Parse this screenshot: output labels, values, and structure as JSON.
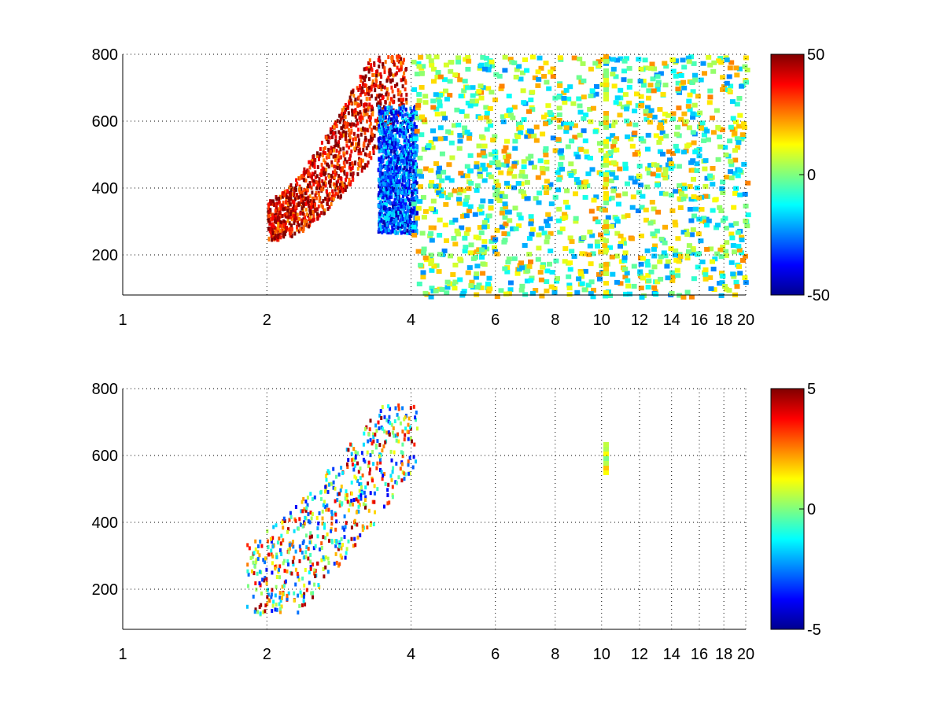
{
  "chart_data": [
    {
      "type": "heatmap",
      "x_ticks": [
        1,
        2,
        4,
        6,
        8,
        10,
        12,
        14,
        16,
        18,
        20
      ],
      "y_ticks": [
        200,
        400,
        600,
        800
      ],
      "xlim": [
        1,
        20
      ],
      "ylim": [
        80,
        800
      ],
      "x_scale": "log",
      "grid": true,
      "grid_style": "dotted",
      "colormap": "jet",
      "color_range": [
        -50,
        50
      ],
      "colorbar_ticks": [
        50,
        0,
        -50
      ],
      "features": [
        {
          "kind": "positive band",
          "x_range": [
            2,
            3.9
          ],
          "y_range": [
            250,
            800
          ],
          "value": 40
        },
        {
          "kind": "negative band",
          "x_range": [
            3.4,
            4.1
          ],
          "y_range": [
            270,
            650
          ],
          "value": -30
        },
        {
          "kind": "scattered speckle",
          "x_range": [
            4,
            20
          ],
          "y_range": [
            80,
            800
          ],
          "value": 0
        },
        {
          "kind": "vertical stripe",
          "x": 10.2,
          "y_range": [
            80,
            800
          ],
          "value": 10
        }
      ]
    },
    {
      "type": "heatmap",
      "x_ticks": [
        1,
        2,
        4,
        6,
        8,
        10,
        12,
        14,
        16,
        18,
        20
      ],
      "y_ticks": [
        200,
        400,
        600,
        800
      ],
      "xlim": [
        1,
        20
      ],
      "ylim": [
        80,
        800
      ],
      "x_scale": "log",
      "grid": true,
      "grid_style": "dotted",
      "colormap": "jet",
      "color_range": [
        -5,
        5
      ],
      "colorbar_ticks": [
        5,
        0,
        -5
      ],
      "features": [
        {
          "kind": "sparse band",
          "x_range": [
            1.8,
            4.1
          ],
          "y_range": [
            130,
            760
          ],
          "value": 0.5
        },
        {
          "kind": "vertical stripe",
          "x": 10.2,
          "y_range": [
            550,
            640
          ],
          "value": 1
        }
      ]
    }
  ]
}
